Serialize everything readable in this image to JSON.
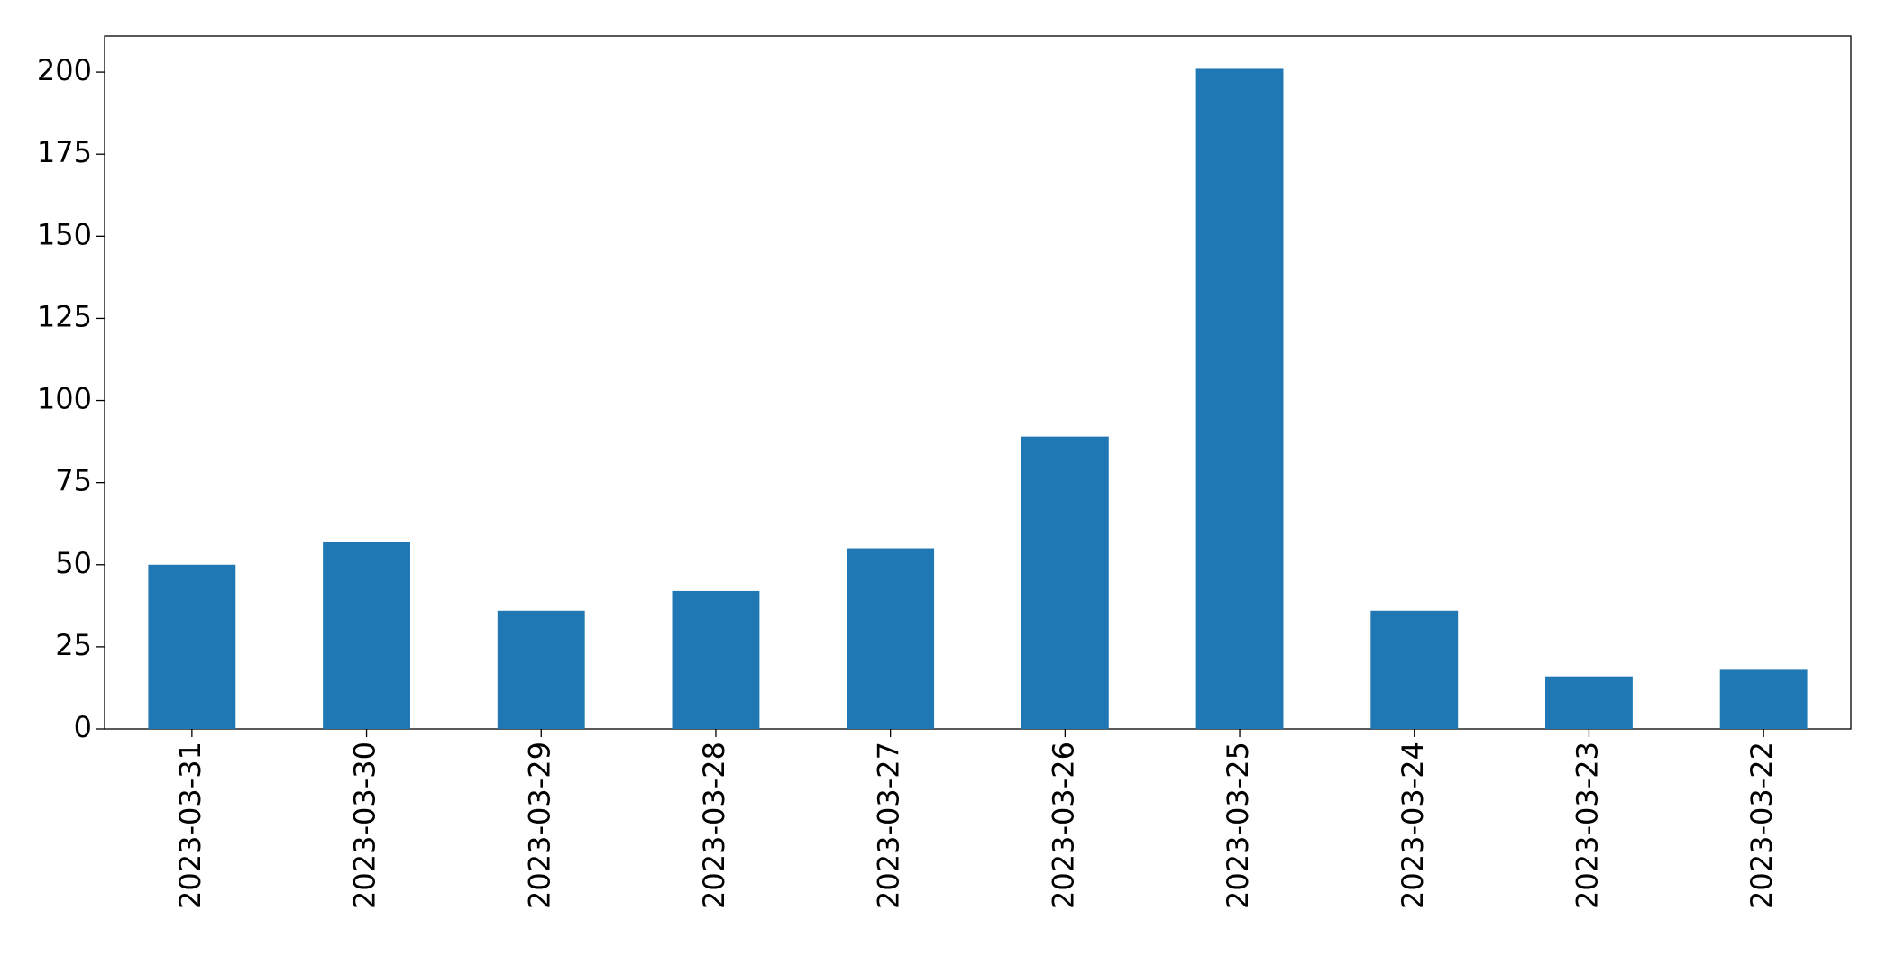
{
  "chart_data": {
    "type": "bar",
    "categories": [
      "2023-03-31",
      "2023-03-30",
      "2023-03-29",
      "2023-03-28",
      "2023-03-27",
      "2023-03-26",
      "2023-03-25",
      "2023-03-24",
      "2023-03-23",
      "2023-03-22"
    ],
    "values": [
      50,
      57,
      36,
      42,
      55,
      89,
      201,
      36,
      16,
      18
    ],
    "color": "#1f77b4",
    "ylim": [
      0,
      211
    ],
    "yticks": [
      0,
      25,
      50,
      75,
      100,
      125,
      150,
      175,
      200
    ],
    "grid": false
  }
}
